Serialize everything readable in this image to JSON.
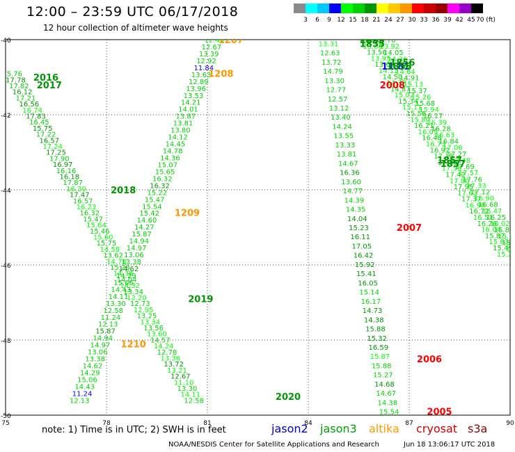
{
  "header": {
    "title": "12:00 – 23:59 UTC 06/17/2018",
    "subtitle": "12 hour collection of altimeter wave heights"
  },
  "color_scale": {
    "labels": [
      "3",
      "6",
      "9",
      "12",
      "15",
      "18",
      "21",
      "24",
      "27",
      "30",
      "33",
      "36",
      "39",
      "42",
      "45",
      "70 (ft)"
    ],
    "colors": [
      "#8a8a8a",
      "#00ffff",
      "#00c8ff",
      "#0000ff",
      "#00ff00",
      "#00d200",
      "#009600",
      "#ffff00",
      "#ffc800",
      "#ff9600",
      "#ff0000",
      "#c80000",
      "#960000",
      "#ff00ff",
      "#9600c8",
      "#000000"
    ]
  },
  "footer": {
    "note": "note:  1) Time is in UTC;  2) SWH is in feet",
    "satellites": [
      {
        "name": "jason2",
        "color": "#0000cc"
      },
      {
        "name": "jason3",
        "color": "#00a000"
      },
      {
        "name": "altika",
        "color": "#ff9900"
      },
      {
        "name": "cryosat",
        "color": "#cc0000"
      },
      {
        "name": "s3a",
        "color": "#880000"
      }
    ],
    "credit": "NOAA/NESDIS Center for Satellite Applications and Research",
    "timestamp": "Jun 18 13:06:17 UTC 2018"
  },
  "chart_data": {
    "type": "scatter",
    "title": "12:00 – 23:59 UTC 06/17/2018",
    "subtitle": "12 hour collection of altimeter wave heights",
    "xlim": [
      75,
      90
    ],
    "ylim": [
      -50,
      -40
    ],
    "x_ticks": [
      "75",
      "78",
      "81",
      "84",
      "87",
      "90"
    ],
    "y_ticks": [
      "-40",
      "-42",
      "-44",
      "-46",
      "-48",
      "-50"
    ],
    "grid": true,
    "tracks": [
      {
        "x0": 75.2,
        "y0": -40.9,
        "x1": 80.6,
        "y1": -49.6,
        "colors": [
          "#00d200",
          "#009600",
          "#00d200",
          "#009600",
          "#00d200",
          "#009600",
          "#00ff00",
          "#009600",
          "#00d200",
          "#009600",
          "#00d200",
          "#009600",
          "#00ff00",
          "#009600",
          "#00d200",
          "#009600",
          "#00d200",
          "#009600",
          "#00d200",
          "#00ff00",
          "#009600",
          "#00d200",
          "#00ff00",
          "#00d200",
          "#00d200",
          "#00ff00",
          "#00d200",
          "#00ff00",
          "#00d200",
          "#00ff00",
          "#00d200",
          "#00ff00",
          "#00d200",
          "#00ff00",
          "#00d200",
          "#00ff00",
          "#00d200",
          "#00ff00",
          "#00d200",
          "#00ff00",
          "#00d200",
          "#00ff00",
          "#00d200",
          "#00ff00",
          "#00d200",
          "#00ff00",
          "#00d200",
          "#00ff00",
          "#009600",
          "#00ff00",
          "#009600",
          "#00ff00",
          "#00d200",
          "#00ff00",
          "#00d200"
        ],
        "values": [
          "15.76",
          "17.78",
          "17.82",
          "16.12",
          "17.21",
          "16.56",
          "16.74",
          "17.83",
          "16.45",
          "15.75",
          "17.22",
          "16.57",
          "17.24",
          "17.25",
          "17.90",
          "16.97",
          "16.16",
          "16.18",
          "17.87",
          "16.30",
          "17.47",
          "16.57",
          "16.23",
          "16.32",
          "15.47",
          "15.64",
          "15.46",
          "15.60",
          "15.75",
          "14.58",
          "13.62",
          "14.78",
          "15.28",
          "14.38",
          "14.04",
          "14.32",
          "13.34",
          "12.20",
          "12.73",
          "12.95",
          "13.25",
          "13.34",
          "13.56",
          "13.60",
          "14.57",
          "14.24",
          "12.78",
          "13.36",
          "13.72",
          "13.21",
          "12.67",
          "11.10",
          "13.30",
          "14.11",
          "12.58"
        ]
      },
      {
        "x0": 81.2,
        "y0": -40.0,
        "x1": 77.2,
        "y1": -49.6,
        "colors": [
          "#00ff00",
          "#00d200",
          "#00d200",
          "#00d200",
          "#0000ff",
          "#00d200",
          "#00d200",
          "#00d200",
          "#00d200",
          "#00d200",
          "#00d200",
          "#00d200",
          "#00d200",
          "#00d200",
          "#00d200",
          "#00d200",
          "#00d200",
          "#00d200",
          "#00d200",
          "#00d200",
          "#00d200",
          "#009600",
          "#00d200",
          "#00d200",
          "#00d200",
          "#00d200",
          "#00d200",
          "#00d200",
          "#00d200",
          "#00d200",
          "#00d200",
          "#00d200",
          "#00d200",
          "#009600",
          "#00d200",
          "#00d200",
          "#00d200",
          "#00d200",
          "#00d200",
          "#00d200",
          "#00d200",
          "#00d200",
          "#009600",
          "#00d200",
          "#00d200",
          "#00d200",
          "#00d200",
          "#00d200",
          "#00d200",
          "#00d200",
          "#00d200",
          "#0000ff",
          "#00d200"
        ],
        "values": [
          "12.46",
          "12.67",
          "13.39",
          "12.92",
          "11.84",
          "13.63",
          "12.89",
          "13.96",
          "13.53",
          "14.21",
          "14.01",
          "13.87",
          "13.81",
          "13.80",
          "14.12",
          "14.45",
          "14.78",
          "14.36",
          "15.07",
          "15.65",
          "16.32",
          "16.32",
          "15.22",
          "15.47",
          "15.54",
          "15.42",
          "14.60",
          "14.27",
          "15.87",
          "14.94",
          "14.97",
          "13.06",
          "13.38",
          "14.62",
          "14.29",
          "15.06",
          "14.43",
          "14.11",
          "13.30",
          "12.58",
          "11.24",
          "12.13",
          "15.87",
          "14.94",
          "14.97",
          "13.06",
          "13.38",
          "14.62",
          "14.29",
          "15.06",
          "14.43",
          "11.24",
          "12.13"
        ]
      },
      {
        "x0": 84.6,
        "y0": -40.1,
        "x1": 86.4,
        "y1": -49.9,
        "colors": [
          "#00ff00",
          "#00d200",
          "#00d200",
          "#00d200",
          "#00d200",
          "#00d200",
          "#00d200",
          "#00d200",
          "#00d200",
          "#00d200",
          "#00d200",
          "#00d200",
          "#00d200",
          "#00d200",
          "#009600",
          "#00d200",
          "#00d200",
          "#00d200",
          "#00d200",
          "#009600",
          "#009600",
          "#009600",
          "#009600",
          "#009600",
          "#009600",
          "#009600",
          "#009600",
          "#00d200",
          "#00d200",
          "#009600",
          "#009600",
          "#009600",
          "#009600",
          "#009600",
          "#00ff00",
          "#00d200",
          "#00d200",
          "#009600",
          "#00d200",
          "#00d200",
          "#00d200"
        ],
        "values": [
          "13.31",
          "12.63",
          "13.72",
          "14.79",
          "13.30",
          "12.77",
          "12.57",
          "13.12",
          "13.40",
          "14.24",
          "13.55",
          "13.33",
          "13.81",
          "14.67",
          "16.36",
          "13.60",
          "14.77",
          "14.39",
          "14.35",
          "14.04",
          "15.23",
          "16.11",
          "17.05",
          "16.42",
          "15.92",
          "15.41",
          "16.05",
          "15.14",
          "16.17",
          "14.73",
          "14.38",
          "15.88",
          "15.32",
          "16.59",
          "15.87",
          "15.88",
          "15.27",
          "14.68",
          "14.67",
          "14.38",
          "15.54"
        ]
      },
      {
        "x0": 85.8,
        "y0": -40.0,
        "x1": 89.9,
        "y1": -45.7,
        "colors": [
          "#00d200",
          "#00ff00",
          "#00d200",
          "#00ff00",
          "#00d200",
          "#00ff00",
          "#00d200",
          "#00ff00",
          "#00d200",
          "#00ff00",
          "#00d200",
          "#00ff00",
          "#00d200",
          "#00ff00",
          "#00d200",
          "#00ff00",
          "#00d200",
          "#00ff00",
          "#00d200",
          "#00ff00",
          "#00d200",
          "#00ff00",
          "#00d200",
          "#00ff00",
          "#00d200",
          "#00ff00",
          "#00d200",
          "#00ff00",
          "#00d200",
          "#00ff00",
          "#00d200",
          "#00ff00",
          "#00d200",
          "#00ff00",
          "#00d200",
          "#00ff00"
        ],
        "values": [
          "14.21",
          "13.88",
          "13.56",
          "13.95",
          "13.68",
          "14.12",
          "14.50",
          "14.33",
          "14.87",
          "15.02",
          "15.34",
          "15.11",
          "15.56",
          "15.80",
          "16.21",
          "16.05",
          "16.48",
          "16.73",
          "16.92",
          "17.15",
          "17.36",
          "17.58",
          "17.42",
          "17.80",
          "17.95",
          "17.63",
          "17.37",
          "16.98",
          "16.72",
          "16.51",
          "16.26",
          "16.04",
          "15.87",
          "15.63",
          "15.49",
          "15.22"
        ]
      },
      {
        "x0": 86.3,
        "y0": -40.0,
        "x1": 90.4,
        "y1": -45.9,
        "colors": [
          "#00d200",
          "#00ff00",
          "#00d200",
          "#00ff00",
          "#00d200",
          "#00ff00",
          "#00d200",
          "#00ff00",
          "#00d200",
          "#00ff00",
          "#00d200",
          "#00ff00",
          "#00d200",
          "#00ff00",
          "#00d200",
          "#00ff00",
          "#00d200",
          "#00ff00",
          "#00d200",
          "#00ff00",
          "#00d200",
          "#00ff00",
          "#00d200",
          "#00ff00",
          "#00d200",
          "#00ff00",
          "#00d200",
          "#00ff00",
          "#00d200",
          "#00ff00",
          "#00d200",
          "#00ff00",
          "#00d200",
          "#00ff00",
          "#00d200",
          "#00ff00"
        ],
        "values": [
          "13.70",
          "13.92",
          "14.05",
          "14.36",
          "14.27",
          "14.64",
          "14.91",
          "15.13",
          "15.37",
          "15.26",
          "15.68",
          "15.94",
          "16.17",
          "16.39",
          "16.28",
          "16.63",
          "16.84",
          "17.06",
          "17.27",
          "17.48",
          "17.69",
          "17.57",
          "17.76",
          "17.33",
          "17.12",
          "16.90",
          "16.68",
          "16.47",
          "16.25",
          "16.02",
          "15.81",
          "15.60",
          "15.39",
          "15.18",
          "14.97",
          "14.76"
        ]
      }
    ],
    "time_labels": [
      {
        "text": "2016",
        "x": 76.2,
        "y": -41.0,
        "color": "#009600"
      },
      {
        "text": "2017",
        "x": 76.3,
        "y": -41.2,
        "color": "#009600"
      },
      {
        "text": "2018",
        "x": 78.5,
        "y": -44.0,
        "color": "#009600"
      },
      {
        "text": "2019",
        "x": 80.8,
        "y": -46.9,
        "color": "#009600"
      },
      {
        "text": "2020",
        "x": 83.4,
        "y": -49.5,
        "color": "#009600"
      },
      {
        "text": "1207",
        "x": 81.7,
        "y": -40.0,
        "color": "#ff9600"
      },
      {
        "text": "1208",
        "x": 81.4,
        "y": -40.9,
        "color": "#ff9600"
      },
      {
        "text": "1209",
        "x": 80.4,
        "y": -44.6,
        "color": "#ff9600"
      },
      {
        "text": "1210",
        "x": 78.8,
        "y": -48.1,
        "color": "#ff9600"
      },
      {
        "text": "2008",
        "x": 86.5,
        "y": -41.2,
        "color": "#ff0000"
      },
      {
        "text": "2007",
        "x": 87.0,
        "y": -45.0,
        "color": "#ff0000"
      },
      {
        "text": "2006",
        "x": 87.6,
        "y": -48.5,
        "color": "#ff0000"
      },
      {
        "text": "2005",
        "x": 87.9,
        "y": -49.9,
        "color": "#ff0000"
      },
      {
        "text": "11.81",
        "x": 86.6,
        "y": -40.7,
        "color": "#0000ff"
      },
      {
        "text": "1855",
        "x": 85.9,
        "y": -40.0,
        "color": "#009600"
      },
      {
        "text": "1855",
        "x": 85.9,
        "y": -40.1,
        "color": "#009600"
      },
      {
        "text": "1856",
        "x": 86.8,
        "y": -40.6,
        "color": "#009600"
      },
      {
        "text": "1856",
        "x": 86.7,
        "y": -40.7,
        "color": "#009600"
      },
      {
        "text": "1857",
        "x": 88.2,
        "y": -43.2,
        "color": "#009600"
      },
      {
        "text": "1857",
        "x": 88.3,
        "y": -43.3,
        "color": "#009600"
      }
    ]
  }
}
